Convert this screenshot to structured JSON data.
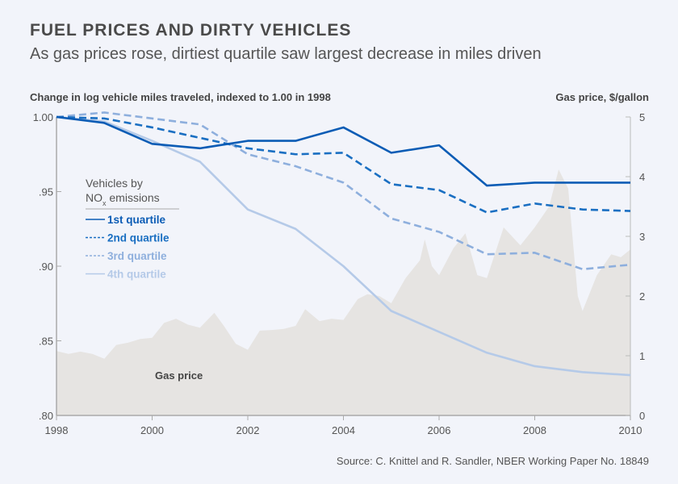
{
  "chart_data": {
    "type": "line",
    "title": "FUEL PRICES AND DIRTY VEHICLES",
    "subtitle": "As gas prices rose, dirtiest quartile saw largest decrease in miles driven",
    "ylabel": "Change in log vehicle miles traveled, indexed to 1.00 in 1998",
    "y2label": "Gas price, $/gallon",
    "source": "Source: C. Knittel and R. Sandler, NBER Working Paper No. 18849",
    "xlim": [
      1998,
      2010
    ],
    "ylim": [
      0.8,
      1.0
    ],
    "y2lim": [
      0,
      5
    ],
    "x_ticks": [
      "1998",
      "2000",
      "2002",
      "2004",
      "2006",
      "2008",
      "2010"
    ],
    "y_ticks": [
      "1.00",
      ".95",
      ".90",
      ".85",
      ".80"
    ],
    "y2_ticks": [
      "5",
      "4",
      "3",
      "2",
      "1",
      "0"
    ],
    "legend": {
      "title_line1": "Vehicles by",
      "title_line2_prefix": "NO",
      "title_line2_sub": "x",
      "title_line2_suffix": " emissions",
      "placement": "left"
    },
    "x": [
      1998,
      1999,
      2000,
      2001,
      2002,
      2003,
      2004,
      2005,
      2006,
      2007,
      2008,
      2009,
      2010
    ],
    "series": [
      {
        "name": "1st quartile",
        "color": "#0b5cb5",
        "dash": false,
        "values": [
          1.0,
          0.996,
          0.982,
          0.979,
          0.984,
          0.984,
          0.993,
          0.976,
          0.981,
          0.954,
          0.956,
          0.956,
          0.956
        ]
      },
      {
        "name": "2nd quartile",
        "color": "#1a6fc2",
        "dash": true,
        "values": [
          1.0,
          0.999,
          0.993,
          0.986,
          0.979,
          0.975,
          0.976,
          0.955,
          0.951,
          0.936,
          0.942,
          0.938,
          0.937
        ]
      },
      {
        "name": "3rd quartile",
        "color": "#8eafdd",
        "dash": true,
        "values": [
          1.0,
          1.003,
          0.999,
          0.995,
          0.975,
          0.967,
          0.956,
          0.932,
          0.923,
          0.908,
          0.909,
          0.898,
          0.901
        ]
      },
      {
        "name": "4th quartile",
        "color": "#b5cae8",
        "dash": false,
        "values": [
          1.0,
          0.997,
          0.984,
          0.97,
          0.938,
          0.925,
          0.9,
          0.87,
          0.856,
          0.842,
          0.833,
          0.829,
          0.827
        ]
      }
    ],
    "gas_price": {
      "name": "Gas price",
      "color": "#e6e4e2",
      "x": [
        1998,
        1998.25,
        1998.5,
        1998.75,
        1999,
        1999.25,
        1999.5,
        1999.75,
        2000,
        2000.25,
        2000.5,
        2000.75,
        2001,
        2001.3,
        2001.5,
        2001.75,
        2002,
        2002.25,
        2002.5,
        2002.75,
        2003,
        2003.2,
        2003.5,
        2003.75,
        2004,
        2004.3,
        2004.5,
        2004.75,
        2005,
        2005.3,
        2005.6,
        2005.7,
        2005.85,
        2006,
        2006.3,
        2006.55,
        2006.8,
        2007,
        2007.35,
        2007.7,
        2008,
        2008.3,
        2008.5,
        2008.7,
        2008.9,
        2009,
        2009.3,
        2009.6,
        2009.8,
        2010
      ],
      "values": [
        1.08,
        1.03,
        1.07,
        1.03,
        0.95,
        1.18,
        1.22,
        1.28,
        1.3,
        1.55,
        1.62,
        1.52,
        1.47,
        1.72,
        1.5,
        1.2,
        1.1,
        1.42,
        1.43,
        1.45,
        1.5,
        1.78,
        1.58,
        1.62,
        1.6,
        1.95,
        2.03,
        2.0,
        1.88,
        2.3,
        2.6,
        2.95,
        2.5,
        2.35,
        2.8,
        3.05,
        2.35,
        2.3,
        3.15,
        2.85,
        3.15,
        3.5,
        4.12,
        3.8,
        2.0,
        1.75,
        2.35,
        2.7,
        2.65,
        2.78
      ]
    }
  }
}
